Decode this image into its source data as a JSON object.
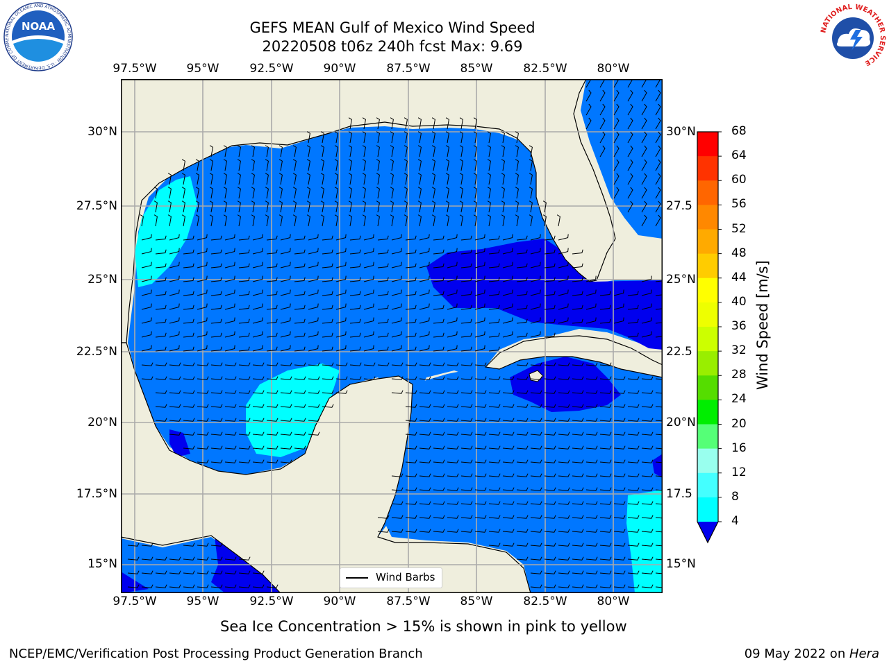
{
  "title": {
    "line1": "GEFS MEAN Gulf of Mexico Wind Speed",
    "line2": "20220508 t06z 240h fcst   Max: 9.69"
  },
  "axes": {
    "lon_labels": [
      "97.5°W",
      "95°W",
      "92.5°W",
      "90°W",
      "87.5°W",
      "85°W",
      "82.5°W",
      "80°W"
    ],
    "lat_labels": [
      "30°N",
      "27.5°N",
      "25°N",
      "22.5°N",
      "20°N",
      "17.5°N",
      "15°N"
    ],
    "right_lat_labels": [
      "30°N",
      "27.5",
      "25°N",
      "22.5",
      "20°N",
      "17.5",
      "15°N"
    ]
  },
  "colorbar": {
    "label": "Wind Speed [m/s]",
    "ticks": [
      "68",
      "64",
      "60",
      "56",
      "52",
      "48",
      "44",
      "40",
      "36",
      "32",
      "28",
      "24",
      "20",
      "16",
      "12",
      "8",
      "4"
    ],
    "colors": [
      "#ff0000",
      "#ff3300",
      "#ff6600",
      "#ff8800",
      "#ffaa00",
      "#ffcc00",
      "#ffff00",
      "#eeff00",
      "#ccff00",
      "#99ee00",
      "#55dd00",
      "#00ee00",
      "#55ff77",
      "#99ffee",
      "#44ffff",
      "#00ffff",
      "#0077ff"
    ],
    "extend_color": "#0000ee"
  },
  "legend": {
    "label": "Wind Barbs"
  },
  "note": "Sea Ice Concentration > 15% is shown in pink to yellow",
  "footer": {
    "left": "NCEP/EMC/Verification Post Processing Product Generation Branch",
    "date": "09 May 2022 on ",
    "machine": "Hera"
  },
  "logos": {
    "noaa_text": "NOAA",
    "noaa_ring": "NATIONAL OCEANIC AND ATMOSPHERIC ADMINISTRATION · U.S. DEPARTMENT OF COMMERCE",
    "nws_ring": "NATIONAL WEATHER SERVICE"
  },
  "map_colors": {
    "land": "#efeedd",
    "ws_4_8": "#0077ff",
    "ws_8_12": "#00ffff",
    "ws_lt_4": "#0000ee",
    "grid": "#aaaaaa"
  }
}
